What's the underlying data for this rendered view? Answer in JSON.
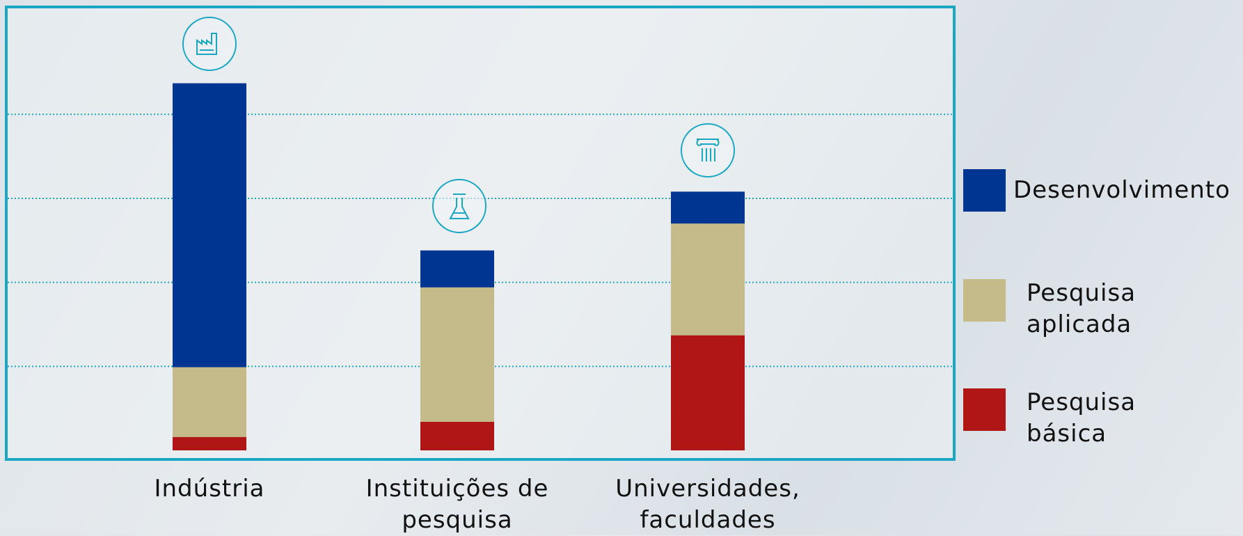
{
  "chart_data": {
    "type": "stacked_bar",
    "categories": [
      "Indústria",
      "Instituições de pesquisa",
      "Universidades, faculdades"
    ],
    "series": [
      {
        "name": "Pesquisa básica",
        "color": "#b01616",
        "values": [
          1.6,
          3.4,
          13.7
        ]
      },
      {
        "name": "Pesquisa aplicada",
        "color": "#c5bb8a",
        "values": [
          8.3,
          16.0,
          13.3
        ]
      },
      {
        "name": "Desenvolvimento",
        "color": "#003591",
        "values": [
          33.8,
          4.4,
          3.8
        ]
      }
    ],
    "ylim": [
      0,
      52.7
    ],
    "yticks": [
      10,
      20,
      30,
      40
    ],
    "grid": true,
    "legend": "right"
  }
}
